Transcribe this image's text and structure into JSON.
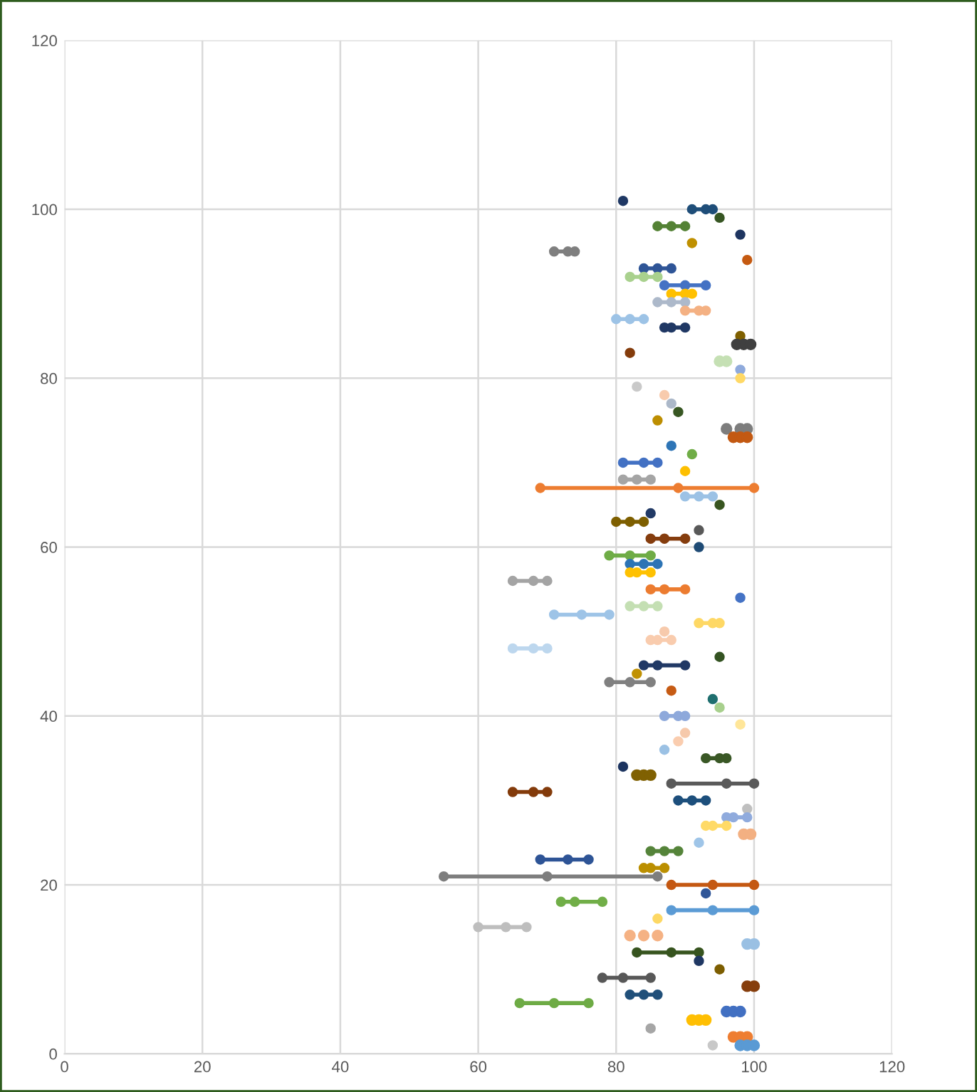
{
  "chart_data": {
    "type": "line",
    "marker": "circle",
    "line_style": "solid",
    "grid": true,
    "legend": false,
    "xlim": [
      0,
      120
    ],
    "ylim": [
      0,
      120
    ],
    "xticks": [
      0,
      20,
      40,
      60,
      80,
      100,
      120
    ],
    "yticks": [
      0,
      20,
      40,
      60,
      80,
      100,
      120
    ],
    "series": [
      {
        "color": "#1f3864",
        "x": [
          81
        ],
        "values": [
          101
        ]
      },
      {
        "color": "#1f4e79",
        "x": [
          91,
          93,
          94
        ],
        "values": [
          100,
          100,
          100
        ]
      },
      {
        "color": "#375623",
        "x": [
          95
        ],
        "values": [
          99
        ]
      },
      {
        "color": "#548235",
        "x": [
          86,
          88,
          90
        ],
        "values": [
          98,
          98,
          98
        ]
      },
      {
        "color": "#1e3560",
        "x": [
          98
        ],
        "values": [
          97
        ]
      },
      {
        "color": "#bf9000",
        "x": [
          91
        ],
        "values": [
          96
        ]
      },
      {
        "color": "#7f7f7f",
        "x": [
          71,
          73,
          74
        ],
        "values": [
          95,
          95,
          95
        ]
      },
      {
        "color": "#c55a11",
        "x": [
          99
        ],
        "values": [
          94
        ]
      },
      {
        "color": "#2f5597",
        "x": [
          84,
          86,
          88
        ],
        "values": [
          93,
          93,
          93
        ]
      },
      {
        "color": "#a9d18e",
        "x": [
          82,
          84,
          86
        ],
        "values": [
          92,
          92,
          92
        ]
      },
      {
        "color": "#4472c4",
        "x": [
          87,
          90,
          93
        ],
        "values": [
          91,
          91,
          91
        ]
      },
      {
        "color": "#ffc000",
        "x": [
          88,
          90,
          91
        ],
        "values": [
          90,
          90,
          90
        ]
      },
      {
        "color": "#adb9ca",
        "x": [
          86,
          88,
          90
        ],
        "values": [
          89,
          89,
          89
        ]
      },
      {
        "color": "#f4b183",
        "x": [
          90,
          92,
          93
        ],
        "values": [
          88,
          88,
          88
        ]
      },
      {
        "color": "#9dc3e6",
        "x": [
          80,
          82,
          84
        ],
        "values": [
          87,
          87,
          87
        ]
      },
      {
        "color": "#203864",
        "x": [
          87,
          88,
          90
        ],
        "values": [
          86,
          86,
          86
        ]
      },
      {
        "color": "#7f6000",
        "x": [
          98
        ],
        "values": [
          85
        ]
      },
      {
        "type": "scatter",
        "color": "#404040",
        "x": [
          97.5,
          98.5,
          99.5
        ],
        "values": [
          84,
          84,
          84
        ]
      },
      {
        "color": "#843c0c",
        "x": [
          82
        ],
        "values": [
          83
        ]
      },
      {
        "type": "scatter",
        "color": "#c5e0b4",
        "x": [
          95,
          96
        ],
        "values": [
          82,
          82
        ]
      },
      {
        "color": "#8faadc",
        "x": [
          98
        ],
        "values": [
          81
        ]
      },
      {
        "color": "#ffd966",
        "x": [
          98
        ],
        "values": [
          80
        ]
      },
      {
        "color": "#c9c9c9",
        "x": [
          83
        ],
        "values": [
          79
        ]
      },
      {
        "color": "#f8cbad",
        "x": [
          87
        ],
        "values": [
          78
        ]
      },
      {
        "color": "#acb8c9",
        "x": [
          88
        ],
        "values": [
          77
        ]
      },
      {
        "color": "#385723",
        "x": [
          89
        ],
        "values": [
          76
        ]
      },
      {
        "color": "#bd8e02",
        "x": [
          86
        ],
        "values": [
          75
        ]
      },
      {
        "type": "scatter",
        "color": "#7d7d7d",
        "x": [
          96,
          98,
          99
        ],
        "values": [
          74,
          74,
          74
        ]
      },
      {
        "type": "scatter",
        "color": "#c35912",
        "x": [
          97,
          98,
          99
        ],
        "values": [
          73,
          73,
          73
        ]
      },
      {
        "color": "#2e75b6",
        "x": [
          88
        ],
        "values": [
          72
        ]
      },
      {
        "color": "#70ad47",
        "x": [
          91
        ],
        "values": [
          71
        ]
      },
      {
        "color": "#4371c3",
        "x": [
          81,
          84,
          86
        ],
        "values": [
          70,
          70,
          70
        ]
      },
      {
        "color": "#fdbf01",
        "x": [
          90
        ],
        "values": [
          69
        ]
      },
      {
        "color": "#a5a5a5",
        "x": [
          81,
          83,
          85
        ],
        "values": [
          68,
          68,
          68
        ]
      },
      {
        "color": "#ed7d31",
        "x": [
          69,
          89,
          100
        ],
        "values": [
          67,
          67,
          67
        ]
      },
      {
        "color": "#9cc2e5",
        "x": [
          90,
          92,
          94
        ],
        "values": [
          66,
          66,
          66
        ]
      },
      {
        "color": "#385520",
        "x": [
          95
        ],
        "values": [
          65
        ]
      },
      {
        "color": "#223a66",
        "x": [
          85
        ],
        "values": [
          64
        ]
      },
      {
        "color": "#7e5f00",
        "x": [
          80,
          82,
          84
        ],
        "values": [
          63,
          63,
          63
        ]
      },
      {
        "color": "#595959",
        "x": [
          92
        ],
        "values": [
          62
        ]
      },
      {
        "color": "#853d0e",
        "x": [
          85,
          87,
          90
        ],
        "values": [
          61,
          61,
          61
        ]
      },
      {
        "color": "#1f4b75",
        "x": [
          92
        ],
        "values": [
          60
        ]
      },
      {
        "color": "#6fac46",
        "x": [
          79,
          82,
          85
        ],
        "values": [
          59,
          59,
          59
        ]
      },
      {
        "color": "#2d74b5",
        "x": [
          82,
          84,
          86
        ],
        "values": [
          58,
          58,
          58
        ]
      },
      {
        "color": "#fec102",
        "x": [
          82,
          83,
          85
        ],
        "values": [
          57,
          57,
          57
        ]
      },
      {
        "color": "#a4a4a4",
        "x": [
          65,
          68,
          70
        ],
        "values": [
          56,
          56,
          56
        ]
      },
      {
        "color": "#ec7c30",
        "x": [
          85,
          87,
          90
        ],
        "values": [
          55,
          55,
          55
        ]
      },
      {
        "color": "#4573c5",
        "x": [
          98
        ],
        "values": [
          54
        ]
      },
      {
        "color": "#c4dfb3",
        "x": [
          82,
          84,
          86
        ],
        "values": [
          53,
          53,
          53
        ]
      },
      {
        "color": "#9ec4e7",
        "x": [
          71,
          75,
          79
        ],
        "values": [
          52,
          52,
          52
        ]
      },
      {
        "color": "#fed865",
        "x": [
          92,
          94,
          95
        ],
        "values": [
          51,
          51,
          51
        ]
      },
      {
        "color": "#f7caac",
        "x": [
          87
        ],
        "values": [
          50
        ]
      },
      {
        "color": "#f9ccae",
        "x": [
          85,
          86,
          88
        ],
        "values": [
          49,
          49,
          49
        ]
      },
      {
        "color": "#bdd7ee",
        "x": [
          65,
          68,
          70
        ],
        "values": [
          48,
          48,
          48
        ]
      },
      {
        "color": "#345322",
        "x": [
          95
        ],
        "values": [
          47
        ]
      },
      {
        "color": "#213965",
        "x": [
          84,
          86,
          90
        ],
        "values": [
          46,
          46,
          46
        ]
      },
      {
        "color": "#c09104",
        "x": [
          83
        ],
        "values": [
          45
        ]
      },
      {
        "color": "#808080",
        "x": [
          79,
          82,
          85
        ],
        "values": [
          44,
          44,
          44
        ]
      },
      {
        "color": "#c65b14",
        "x": [
          88
        ],
        "values": [
          43
        ]
      },
      {
        "color": "#1f6f6f",
        "x": [
          94
        ],
        "values": [
          42
        ]
      },
      {
        "color": "#a8d08d",
        "x": [
          95
        ],
        "values": [
          41
        ]
      },
      {
        "color": "#8ea9db",
        "x": [
          87,
          89,
          90
        ],
        "values": [
          40,
          40,
          40
        ]
      },
      {
        "color": "#ffe699",
        "x": [
          98
        ],
        "values": [
          39
        ]
      },
      {
        "color": "#f6c9ab",
        "x": [
          90
        ],
        "values": [
          38
        ]
      },
      {
        "color": "#facdaf",
        "x": [
          89
        ],
        "values": [
          37
        ]
      },
      {
        "color": "#9bc1e4",
        "x": [
          87
        ],
        "values": [
          36
        ]
      },
      {
        "color": "#3a5826",
        "x": [
          93,
          95,
          96
        ],
        "values": [
          35,
          35,
          35
        ]
      },
      {
        "color": "#1c3460",
        "x": [
          81
        ],
        "values": [
          34
        ]
      },
      {
        "type": "scatter",
        "color": "#806102",
        "x": [
          83,
          84,
          85
        ],
        "values": [
          33,
          33,
          33
        ]
      },
      {
        "color": "#5a5a5a",
        "x": [
          88,
          96,
          100
        ],
        "values": [
          32,
          32,
          32
        ]
      },
      {
        "color": "#833b0b",
        "x": [
          65,
          68,
          70
        ],
        "values": [
          31,
          31,
          31
        ]
      },
      {
        "color": "#1d4f7c",
        "x": [
          89,
          91,
          93
        ],
        "values": [
          30,
          30,
          30
        ]
      },
      {
        "color": "#bfbfbf",
        "x": [
          99
        ],
        "values": [
          29
        ]
      },
      {
        "color": "#90abdd",
        "x": [
          96,
          97,
          99
        ],
        "values": [
          28,
          28,
          28
        ]
      },
      {
        "color": "#ffda67",
        "x": [
          93,
          94,
          96
        ],
        "values": [
          27,
          27,
          27
        ]
      },
      {
        "type": "scatter",
        "color": "#f3b082",
        "x": [
          98.5,
          99.5
        ],
        "values": [
          26,
          26
        ]
      },
      {
        "color": "#9fc5e8",
        "x": [
          92
        ],
        "values": [
          25
        ]
      },
      {
        "color": "#55843a",
        "x": [
          85,
          87,
          89
        ],
        "values": [
          24,
          24,
          24
        ]
      },
      {
        "color": "#2e5496",
        "x": [
          69,
          73,
          76
        ],
        "values": [
          23,
          23,
          23
        ]
      },
      {
        "color": "#bb8f00",
        "x": [
          84,
          85,
          87
        ],
        "values": [
          22,
          22,
          22
        ]
      },
      {
        "color": "#7e7e7e",
        "x": [
          55,
          70,
          86
        ],
        "values": [
          21,
          21,
          21
        ]
      },
      {
        "color": "#c45812",
        "x": [
          88,
          94,
          100
        ],
        "values": [
          20,
          20,
          20
        ]
      },
      {
        "color": "#305698",
        "x": [
          93
        ],
        "values": [
          19
        ]
      },
      {
        "color": "#71ae48",
        "x": [
          72,
          74,
          78
        ],
        "values": [
          18,
          18,
          18
        ]
      },
      {
        "color": "#5b9bd5",
        "x": [
          88,
          94,
          100
        ],
        "values": [
          17,
          17,
          17
        ]
      },
      {
        "color": "#fdd864",
        "x": [
          86
        ],
        "values": [
          16
        ]
      },
      {
        "color": "#bebebe",
        "x": [
          60,
          64,
          67
        ],
        "values": [
          15,
          15,
          15
        ]
      },
      {
        "type": "scatter",
        "color": "#f5b284",
        "x": [
          82,
          84,
          86
        ],
        "values": [
          14,
          14,
          14
        ]
      },
      {
        "type": "scatter",
        "color": "#9ac0e3",
        "x": [
          99,
          100
        ],
        "values": [
          13,
          13
        ]
      },
      {
        "color": "#37541f",
        "x": [
          83,
          88,
          92
        ],
        "values": [
          12,
          12,
          12
        ]
      },
      {
        "color": "#1f3763",
        "x": [
          92
        ],
        "values": [
          11
        ]
      },
      {
        "color": "#7d5e01",
        "x": [
          95
        ],
        "values": [
          10
        ]
      },
      {
        "color": "#585858",
        "x": [
          78,
          81,
          85
        ],
        "values": [
          9,
          9,
          9
        ]
      },
      {
        "type": "scatter",
        "color": "#863e0d",
        "x": [
          99,
          100
        ],
        "values": [
          8,
          8
        ]
      },
      {
        "color": "#21507a",
        "x": [
          82,
          84,
          86
        ],
        "values": [
          7,
          7,
          7
        ]
      },
      {
        "color": "#6eab45",
        "x": [
          66,
          71,
          76
        ],
        "values": [
          6,
          6,
          6
        ]
      },
      {
        "type": "scatter",
        "color": "#4270c2",
        "x": [
          96,
          97,
          98
        ],
        "values": [
          5,
          5,
          5
        ]
      },
      {
        "type": "scatter",
        "color": "#ffbf03",
        "x": [
          91,
          92,
          93
        ],
        "values": [
          4,
          4,
          4
        ]
      },
      {
        "color": "#a6a6a6",
        "x": [
          85
        ],
        "values": [
          3
        ]
      },
      {
        "type": "scatter",
        "color": "#ee7e32",
        "x": [
          97,
          98,
          99
        ],
        "values": [
          2,
          2,
          2
        ]
      },
      {
        "color": "#c8c8c8",
        "x": [
          94
        ],
        "values": [
          1
        ]
      },
      {
        "type": "scatter",
        "color": "#5a9ad4",
        "x": [
          98,
          99,
          100
        ],
        "values": [
          1,
          1,
          1
        ]
      }
    ]
  }
}
